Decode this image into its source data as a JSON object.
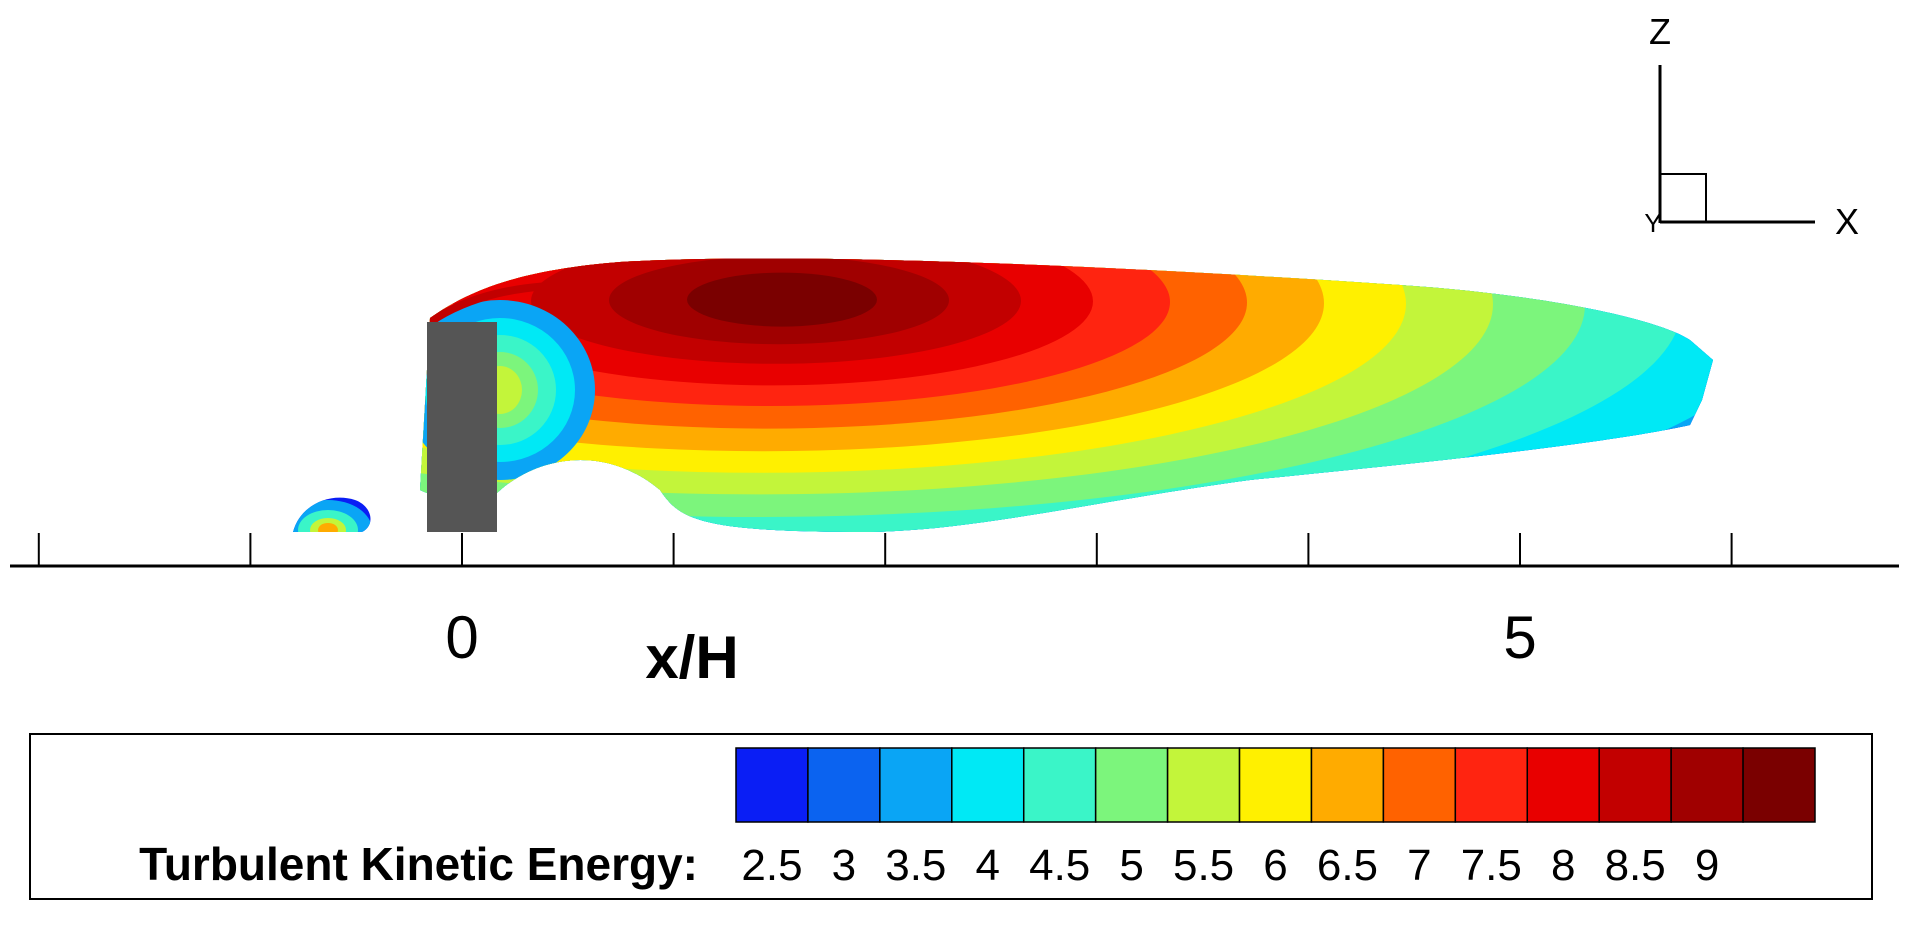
{
  "chart_data": {
    "type": "heatmap",
    "title": "",
    "xlabel": "x/H",
    "ylabel": "",
    "x_tick_labels": [
      "0",
      "5"
    ],
    "x_major_ticks": [
      -2,
      -1,
      0,
      1,
      2,
      3,
      4,
      5,
      6
    ],
    "xlim": [
      -2.15,
      6.75
    ],
    "axes_triad": {
      "vertical": "Z",
      "horizontal": "X",
      "origin": "Y"
    },
    "colorbar": {
      "label": "Turbulent Kinetic Energy:",
      "levels": [
        "2.5",
        "3",
        "3.5",
        "4",
        "4.5",
        "5",
        "5.5",
        "6",
        "6.5",
        "7",
        "7.5",
        "8",
        "8.5",
        "9"
      ],
      "colors": [
        "#0a1ef5",
        "#0b63f0",
        "#0aa5f5",
        "#00e9f5",
        "#3af5c8",
        "#7cf57c",
        "#c3f53a",
        "#fff000",
        "#ffab00",
        "#ff6200",
        "#ff2410",
        "#e80000",
        "#c20000",
        "#a00000",
        "#7a0000"
      ]
    },
    "obstacle": {
      "color": "#555555"
    }
  }
}
